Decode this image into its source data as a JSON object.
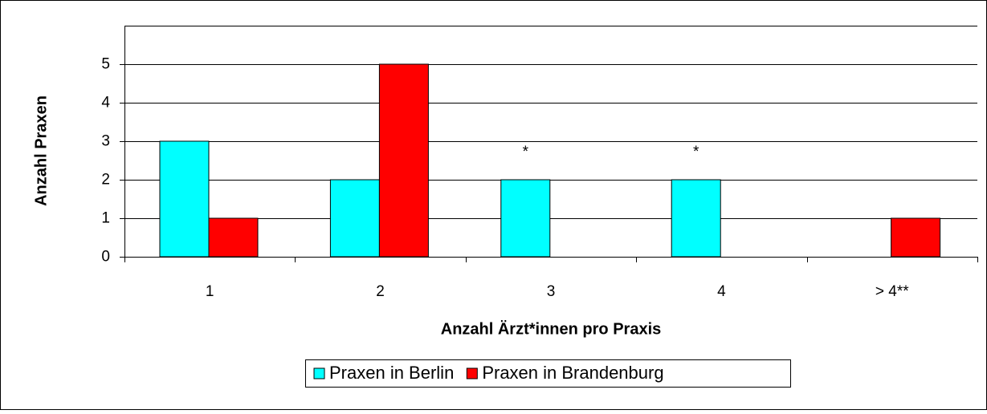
{
  "chart_data": {
    "type": "bar",
    "x_label": "Anzahl Ärzt*innen pro Praxis",
    "y_label": "Anzahl Praxen",
    "categories": [
      "1",
      "2",
      "3",
      "4",
      "> 4**"
    ],
    "series": [
      {
        "name": "Praxen in Berlin",
        "color": "#00ffff",
        "values": [
          3,
          2,
          2,
          2,
          0
        ]
      },
      {
        "name": "Praxen in Brandenburg",
        "color": "#ff0000",
        "values": [
          1,
          5,
          0,
          0,
          1
        ]
      }
    ],
    "annotations": [
      {
        "text": "*",
        "x": "3"
      },
      {
        "text": "*",
        "x": "4"
      }
    ],
    "ylim": [
      0,
      6
    ],
    "yticks": [
      0,
      1,
      2,
      3,
      4,
      5
    ],
    "grid": true
  }
}
